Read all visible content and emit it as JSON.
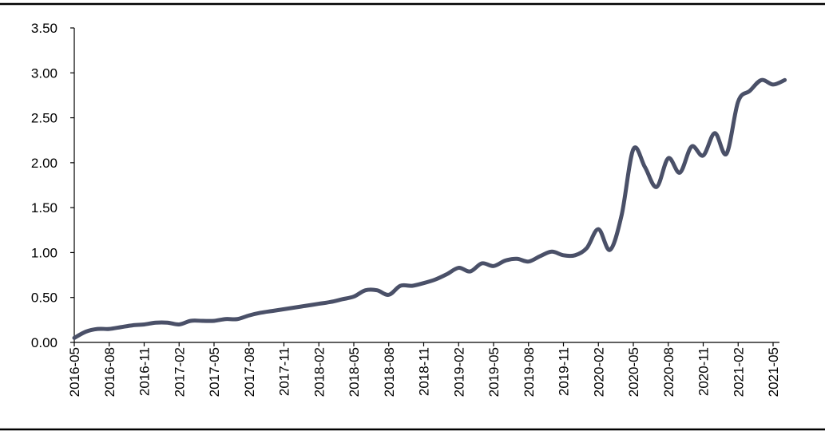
{
  "colors": {
    "series_line": "#4a5068",
    "axis": "#000000",
    "background": "#ffffff"
  },
  "chart_data": {
    "type": "line",
    "title": "",
    "xlabel": "",
    "ylabel": "",
    "grid": false,
    "ylim": [
      0,
      3.5
    ],
    "yticks": [
      "0.00",
      "0.50",
      "1.00",
      "1.50",
      "2.00",
      "2.50",
      "3.00",
      "3.50"
    ],
    "xlim": [
      "2016-05",
      "2021-05"
    ],
    "xticks": [
      "2016-05",
      "2016-08",
      "2016-11",
      "2017-02",
      "2017-05",
      "2017-08",
      "2017-11",
      "2018-02",
      "2018-05",
      "2018-08",
      "2018-11",
      "2019-02",
      "2019-05",
      "2019-08",
      "2019-11",
      "2020-02",
      "2020-05",
      "2020-08",
      "2020-11",
      "2021-02",
      "2021-05"
    ],
    "series": [
      {
        "values": [
          [
            "2016-05",
            0.05
          ],
          [
            "2016-06",
            0.12
          ],
          [
            "2016-07",
            0.15
          ],
          [
            "2016-08",
            0.15
          ],
          [
            "2016-09",
            0.17
          ],
          [
            "2016-10",
            0.19
          ],
          [
            "2016-11",
            0.2
          ],
          [
            "2016-12",
            0.22
          ],
          [
            "2017-01",
            0.22
          ],
          [
            "2017-02",
            0.2
          ],
          [
            "2017-03",
            0.24
          ],
          [
            "2017-04",
            0.24
          ],
          [
            "2017-05",
            0.24
          ],
          [
            "2017-06",
            0.26
          ],
          [
            "2017-07",
            0.26
          ],
          [
            "2017-08",
            0.3
          ],
          [
            "2017-09",
            0.33
          ],
          [
            "2017-10",
            0.35
          ],
          [
            "2017-11",
            0.37
          ],
          [
            "2017-12",
            0.39
          ],
          [
            "2018-01",
            0.41
          ],
          [
            "2018-02",
            0.43
          ],
          [
            "2018-03",
            0.45
          ],
          [
            "2018-04",
            0.48
          ],
          [
            "2018-05",
            0.51
          ],
          [
            "2018-06",
            0.58
          ],
          [
            "2018-07",
            0.58
          ],
          [
            "2018-08",
            0.53
          ],
          [
            "2018-09",
            0.63
          ],
          [
            "2018-10",
            0.63
          ],
          [
            "2018-11",
            0.66
          ],
          [
            "2018-12",
            0.7
          ],
          [
            "2019-01",
            0.76
          ],
          [
            "2019-02",
            0.83
          ],
          [
            "2019-03",
            0.79
          ],
          [
            "2019-04",
            0.88
          ],
          [
            "2019-05",
            0.85
          ],
          [
            "2019-06",
            0.91
          ],
          [
            "2019-07",
            0.93
          ],
          [
            "2019-08",
            0.9
          ],
          [
            "2019-09",
            0.96
          ],
          [
            "2019-10",
            1.01
          ],
          [
            "2019-11",
            0.97
          ],
          [
            "2019-12",
            0.97
          ],
          [
            "2020-01",
            1.05
          ],
          [
            "2020-02",
            1.26
          ],
          [
            "2020-03",
            1.03
          ],
          [
            "2020-04",
            1.42
          ],
          [
            "2020-05",
            2.15
          ],
          [
            "2020-06",
            1.95
          ],
          [
            "2020-07",
            1.73
          ],
          [
            "2020-08",
            2.05
          ],
          [
            "2020-09",
            1.89
          ],
          [
            "2020-10",
            2.18
          ],
          [
            "2020-11",
            2.08
          ],
          [
            "2020-12",
            2.33
          ],
          [
            "2021-01",
            2.1
          ],
          [
            "2021-02",
            2.68
          ],
          [
            "2021-03",
            2.8
          ],
          [
            "2021-04",
            2.92
          ],
          [
            "2021-05",
            2.87
          ],
          [
            "2021-06",
            2.92
          ]
        ]
      }
    ]
  }
}
